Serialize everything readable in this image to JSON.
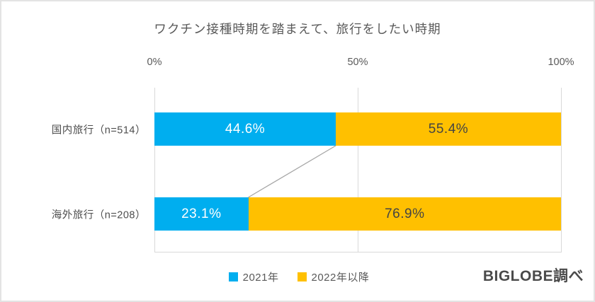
{
  "title": "ワクチン接種時期を踏まえて、旅行をしたい時期",
  "source_label": "BIGLOBE調べ",
  "colors": {
    "series_blue": "#00AEEF",
    "series_yellow": "#FFC000",
    "gridline": "#d9d9d9",
    "connector": "#a6a6a6",
    "title_text": "#595959"
  },
  "chart_data": {
    "type": "bar",
    "orientation": "horizontal",
    "stacked": true,
    "title": "ワクチン接種時期を踏まえて、旅行をしたい時期",
    "categories": [
      "国内旅行（n=514）",
      "海外旅行（n=208）"
    ],
    "series": [
      {
        "name": "2021年",
        "color": "#00AEEF",
        "label_color": "#ffffff",
        "values": [
          44.6,
          23.1
        ]
      },
      {
        "name": "2022年以降",
        "color": "#FFC000",
        "label_color": "#444444",
        "values": [
          55.4,
          76.9
        ]
      }
    ],
    "value_suffix": "%",
    "x_ticks": [
      {
        "label": "0%",
        "value": 0
      },
      {
        "label": "50%",
        "value": 50
      },
      {
        "label": "100%",
        "value": 100
      }
    ],
    "xlim": [
      0,
      100
    ],
    "grid": true,
    "legend_position": "bottom",
    "series_connector_lines": true
  }
}
